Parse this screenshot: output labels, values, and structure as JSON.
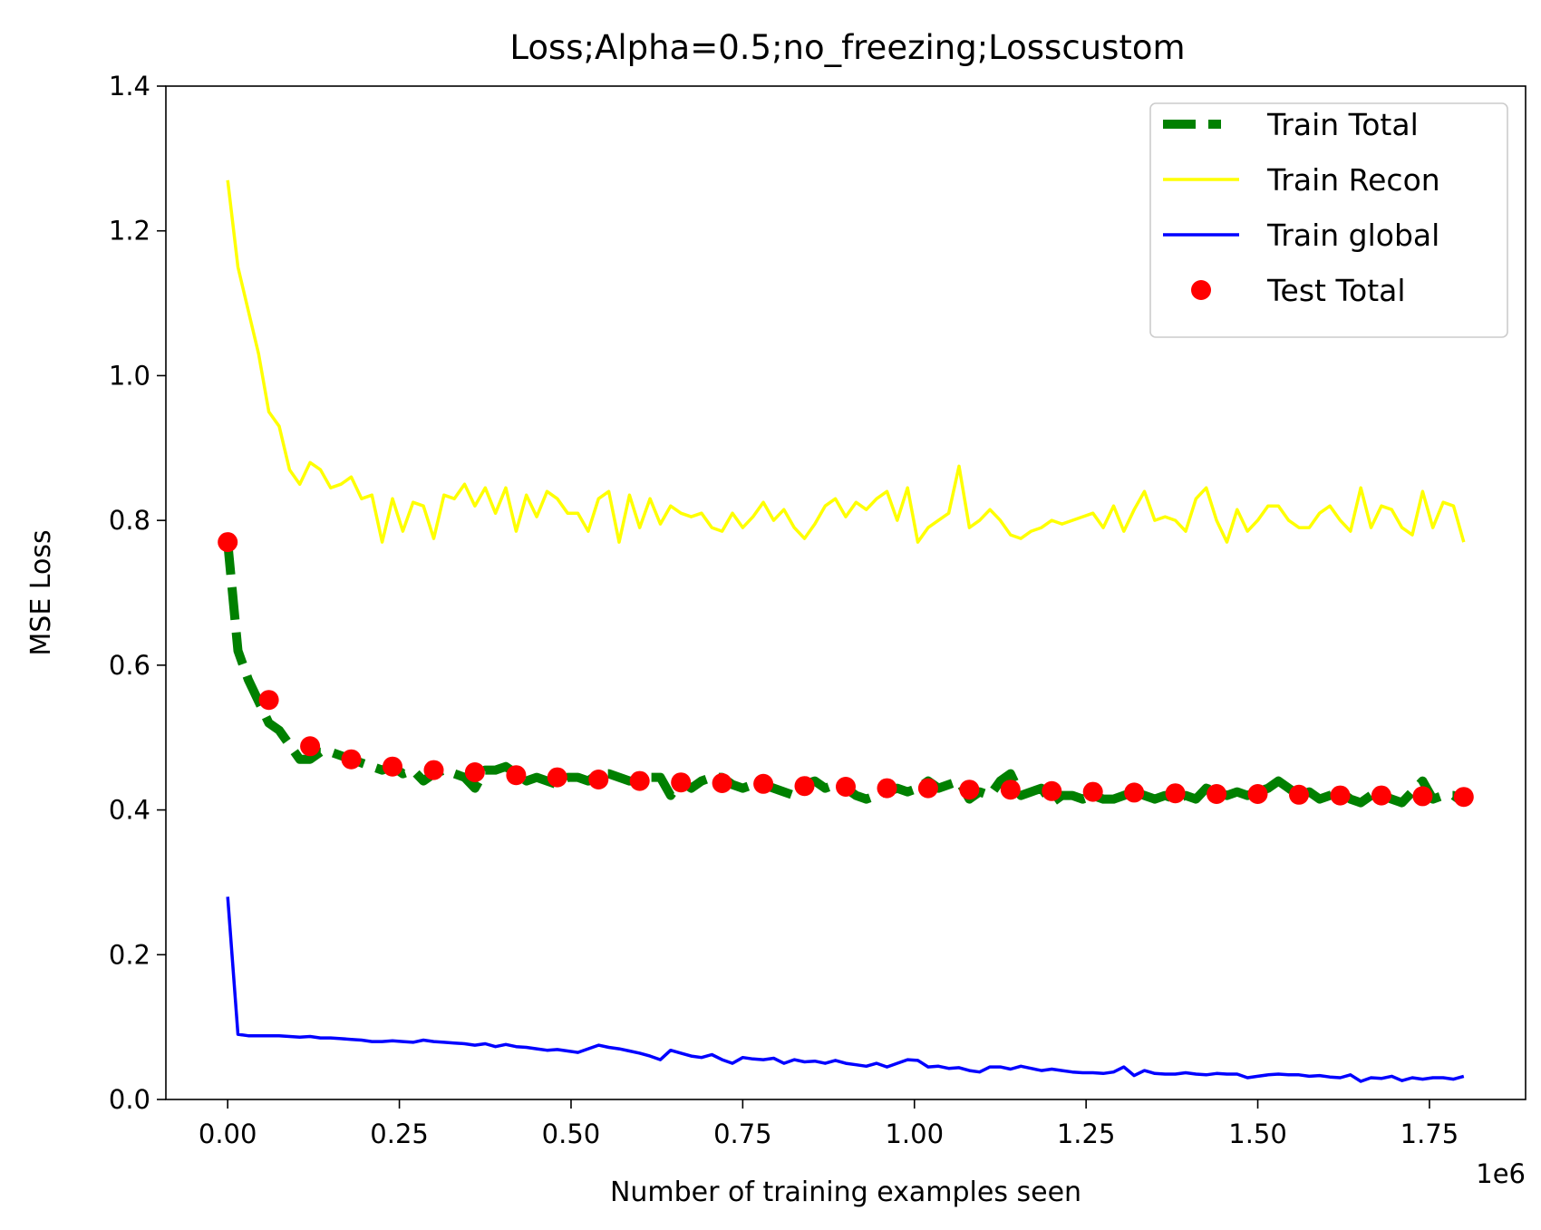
{
  "chart_data": {
    "type": "line",
    "title": "Loss;Alpha=0.5;no_freezing;Losscustom",
    "xlabel": "Number of training examples seen",
    "ylabel": "MSE Loss",
    "x_offset_label": "1e6",
    "xlim": [
      -0.09,
      1.89
    ],
    "ylim": [
      0.0,
      1.4
    ],
    "x_ticks": [
      0.0,
      0.25,
      0.5,
      0.75,
      1.0,
      1.25,
      1.5,
      1.75
    ],
    "x_tick_labels": [
      "0.00",
      "0.25",
      "0.50",
      "0.75",
      "1.00",
      "1.25",
      "1.50",
      "1.75"
    ],
    "y_ticks": [
      0.0,
      0.2,
      0.4,
      0.6,
      0.8,
      1.0,
      1.2,
      1.4
    ],
    "y_tick_labels": [
      "0.0",
      "0.2",
      "0.4",
      "0.6",
      "0.8",
      "1.0",
      "1.2",
      "1.4"
    ],
    "grid": false,
    "legend_position": "top-right",
    "series": [
      {
        "name": "Train Total",
        "style": "dashed",
        "color": "#008000",
        "x": [
          0.0,
          0.015,
          0.03,
          0.045,
          0.06,
          0.075,
          0.09,
          0.105,
          0.12,
          0.135,
          0.15,
          0.165,
          0.18,
          0.195,
          0.21,
          0.225,
          0.24,
          0.255,
          0.27,
          0.285,
          0.3,
          0.315,
          0.33,
          0.345,
          0.36,
          0.375,
          0.39,
          0.405,
          0.42,
          0.435,
          0.45,
          0.465,
          0.48,
          0.495,
          0.51,
          0.525,
          0.54,
          0.555,
          0.57,
          0.585,
          0.6,
          0.615,
          0.63,
          0.645,
          0.66,
          0.675,
          0.69,
          0.705,
          0.72,
          0.735,
          0.75,
          0.765,
          0.78,
          0.795,
          0.81,
          0.825,
          0.84,
          0.855,
          0.87,
          0.885,
          0.9,
          0.915,
          0.93,
          0.945,
          0.96,
          0.975,
          0.99,
          1.005,
          1.02,
          1.035,
          1.05,
          1.065,
          1.08,
          1.095,
          1.11,
          1.125,
          1.14,
          1.155,
          1.17,
          1.185,
          1.2,
          1.215,
          1.23,
          1.245,
          1.26,
          1.275,
          1.29,
          1.305,
          1.32,
          1.335,
          1.35,
          1.365,
          1.38,
          1.395,
          1.41,
          1.425,
          1.44,
          1.455,
          1.47,
          1.485,
          1.5,
          1.515,
          1.53,
          1.545,
          1.56,
          1.575,
          1.59,
          1.605,
          1.62,
          1.635,
          1.65,
          1.665,
          1.68,
          1.695,
          1.71,
          1.725,
          1.74,
          1.755,
          1.77,
          1.785,
          1.8
        ],
        "values": [
          0.77,
          0.62,
          0.58,
          0.55,
          0.52,
          0.51,
          0.49,
          0.47,
          0.47,
          0.48,
          0.48,
          0.475,
          0.47,
          0.465,
          0.46,
          0.455,
          0.46,
          0.45,
          0.455,
          0.44,
          0.45,
          0.455,
          0.45,
          0.445,
          0.43,
          0.455,
          0.455,
          0.46,
          0.45,
          0.44,
          0.445,
          0.44,
          0.435,
          0.445,
          0.445,
          0.44,
          0.45,
          0.45,
          0.445,
          0.44,
          0.44,
          0.445,
          0.445,
          0.42,
          0.44,
          0.43,
          0.44,
          0.445,
          0.445,
          0.435,
          0.43,
          0.435,
          0.435,
          0.43,
          0.425,
          0.42,
          0.435,
          0.44,
          0.43,
          0.435,
          0.43,
          0.42,
          0.415,
          0.42,
          0.425,
          0.43,
          0.425,
          0.43,
          0.44,
          0.43,
          0.435,
          0.44,
          0.415,
          0.425,
          0.42,
          0.44,
          0.45,
          0.42,
          0.425,
          0.43,
          0.41,
          0.42,
          0.42,
          0.415,
          0.42,
          0.415,
          0.415,
          0.42,
          0.425,
          0.42,
          0.415,
          0.42,
          0.415,
          0.42,
          0.415,
          0.43,
          0.425,
          0.42,
          0.425,
          0.42,
          0.425,
          0.43,
          0.44,
          0.43,
          0.42,
          0.425,
          0.415,
          0.42,
          0.425,
          0.415,
          0.41,
          0.42,
          0.42,
          0.415,
          0.41,
          0.425,
          0.44,
          0.415,
          0.42,
          0.42,
          0.41
        ]
      },
      {
        "name": "Train Recon",
        "style": "solid",
        "color": "#ffff00",
        "x": [
          0.0,
          0.015,
          0.03,
          0.045,
          0.06,
          0.075,
          0.09,
          0.105,
          0.12,
          0.135,
          0.15,
          0.165,
          0.18,
          0.195,
          0.21,
          0.225,
          0.24,
          0.255,
          0.27,
          0.285,
          0.3,
          0.315,
          0.33,
          0.345,
          0.36,
          0.375,
          0.39,
          0.405,
          0.42,
          0.435,
          0.45,
          0.465,
          0.48,
          0.495,
          0.51,
          0.525,
          0.54,
          0.555,
          0.57,
          0.585,
          0.6,
          0.615,
          0.63,
          0.645,
          0.66,
          0.675,
          0.69,
          0.705,
          0.72,
          0.735,
          0.75,
          0.765,
          0.78,
          0.795,
          0.81,
          0.825,
          0.84,
          0.855,
          0.87,
          0.885,
          0.9,
          0.915,
          0.93,
          0.945,
          0.96,
          0.975,
          0.99,
          1.005,
          1.02,
          1.035,
          1.05,
          1.065,
          1.08,
          1.095,
          1.11,
          1.125,
          1.14,
          1.155,
          1.17,
          1.185,
          1.2,
          1.215,
          1.23,
          1.245,
          1.26,
          1.275,
          1.29,
          1.305,
          1.32,
          1.335,
          1.35,
          1.365,
          1.38,
          1.395,
          1.41,
          1.425,
          1.44,
          1.455,
          1.47,
          1.485,
          1.5,
          1.515,
          1.53,
          1.545,
          1.56,
          1.575,
          1.59,
          1.605,
          1.62,
          1.635,
          1.65,
          1.665,
          1.68,
          1.695,
          1.71,
          1.725,
          1.74,
          1.755,
          1.77,
          1.785,
          1.8
        ],
        "values": [
          1.27,
          1.15,
          1.09,
          1.03,
          0.95,
          0.93,
          0.87,
          0.85,
          0.88,
          0.87,
          0.845,
          0.85,
          0.86,
          0.83,
          0.835,
          0.77,
          0.83,
          0.785,
          0.825,
          0.82,
          0.775,
          0.835,
          0.83,
          0.85,
          0.82,
          0.845,
          0.81,
          0.845,
          0.785,
          0.835,
          0.805,
          0.84,
          0.83,
          0.81,
          0.81,
          0.785,
          0.83,
          0.84,
          0.77,
          0.835,
          0.79,
          0.83,
          0.795,
          0.82,
          0.81,
          0.805,
          0.81,
          0.79,
          0.785,
          0.81,
          0.79,
          0.805,
          0.825,
          0.8,
          0.815,
          0.79,
          0.775,
          0.795,
          0.82,
          0.83,
          0.805,
          0.825,
          0.815,
          0.83,
          0.84,
          0.8,
          0.845,
          0.77,
          0.79,
          0.8,
          0.81,
          0.875,
          0.79,
          0.8,
          0.815,
          0.8,
          0.78,
          0.775,
          0.785,
          0.79,
          0.8,
          0.795,
          0.8,
          0.805,
          0.81,
          0.79,
          0.82,
          0.785,
          0.815,
          0.84,
          0.8,
          0.805,
          0.8,
          0.785,
          0.83,
          0.845,
          0.8,
          0.77,
          0.815,
          0.785,
          0.8,
          0.82,
          0.82,
          0.8,
          0.79,
          0.79,
          0.81,
          0.82,
          0.8,
          0.785,
          0.845,
          0.79,
          0.82,
          0.815,
          0.79,
          0.78,
          0.84,
          0.79,
          0.825,
          0.82,
          0.77
        ]
      },
      {
        "name": "Train global",
        "style": "solid",
        "color": "#0000ff",
        "x": [
          0.0,
          0.015,
          0.03,
          0.045,
          0.06,
          0.075,
          0.09,
          0.105,
          0.12,
          0.135,
          0.15,
          0.165,
          0.18,
          0.195,
          0.21,
          0.225,
          0.24,
          0.255,
          0.27,
          0.285,
          0.3,
          0.315,
          0.33,
          0.345,
          0.36,
          0.375,
          0.39,
          0.405,
          0.42,
          0.435,
          0.45,
          0.465,
          0.48,
          0.495,
          0.51,
          0.525,
          0.54,
          0.555,
          0.57,
          0.585,
          0.6,
          0.615,
          0.63,
          0.645,
          0.66,
          0.675,
          0.69,
          0.705,
          0.72,
          0.735,
          0.75,
          0.765,
          0.78,
          0.795,
          0.81,
          0.825,
          0.84,
          0.855,
          0.87,
          0.885,
          0.9,
          0.915,
          0.93,
          0.945,
          0.96,
          0.975,
          0.99,
          1.005,
          1.02,
          1.035,
          1.05,
          1.065,
          1.08,
          1.095,
          1.11,
          1.125,
          1.14,
          1.155,
          1.17,
          1.185,
          1.2,
          1.215,
          1.23,
          1.245,
          1.26,
          1.275,
          1.29,
          1.305,
          1.32,
          1.335,
          1.35,
          1.365,
          1.38,
          1.395,
          1.41,
          1.425,
          1.44,
          1.455,
          1.47,
          1.485,
          1.5,
          1.515,
          1.53,
          1.545,
          1.56,
          1.575,
          1.59,
          1.605,
          1.62,
          1.635,
          1.65,
          1.665,
          1.68,
          1.695,
          1.71,
          1.725,
          1.74,
          1.755,
          1.77,
          1.785,
          1.8
        ],
        "values": [
          0.28,
          0.09,
          0.088,
          0.088,
          0.088,
          0.088,
          0.087,
          0.086,
          0.087,
          0.085,
          0.085,
          0.084,
          0.083,
          0.082,
          0.08,
          0.08,
          0.081,
          0.08,
          0.079,
          0.082,
          0.08,
          0.079,
          0.078,
          0.077,
          0.075,
          0.077,
          0.073,
          0.076,
          0.073,
          0.072,
          0.07,
          0.068,
          0.069,
          0.067,
          0.065,
          0.07,
          0.075,
          0.072,
          0.07,
          0.067,
          0.064,
          0.06,
          0.055,
          0.068,
          0.064,
          0.06,
          0.058,
          0.062,
          0.055,
          0.05,
          0.058,
          0.056,
          0.055,
          0.057,
          0.05,
          0.055,
          0.052,
          0.053,
          0.05,
          0.054,
          0.05,
          0.048,
          0.046,
          0.05,
          0.045,
          0.05,
          0.055,
          0.054,
          0.045,
          0.046,
          0.043,
          0.044,
          0.04,
          0.038,
          0.045,
          0.045,
          0.042,
          0.046,
          0.043,
          0.04,
          0.042,
          0.04,
          0.038,
          0.037,
          0.037,
          0.036,
          0.038,
          0.045,
          0.033,
          0.04,
          0.036,
          0.035,
          0.035,
          0.037,
          0.035,
          0.034,
          0.036,
          0.035,
          0.035,
          0.03,
          0.032,
          0.034,
          0.035,
          0.034,
          0.034,
          0.032,
          0.033,
          0.031,
          0.03,
          0.034,
          0.025,
          0.03,
          0.029,
          0.032,
          0.026,
          0.03,
          0.028,
          0.03,
          0.03,
          0.028,
          0.032
        ]
      },
      {
        "name": "Test Total",
        "style": "scatter",
        "color": "#ff0000",
        "x": [
          0.0,
          0.06,
          0.12,
          0.18,
          0.24,
          0.3,
          0.36,
          0.42,
          0.48,
          0.54,
          0.6,
          0.66,
          0.72,
          0.78,
          0.84,
          0.9,
          0.96,
          1.02,
          1.08,
          1.14,
          1.2,
          1.26,
          1.32,
          1.38,
          1.44,
          1.5,
          1.56,
          1.62,
          1.68,
          1.74,
          1.8
        ],
        "values": [
          0.77,
          0.552,
          0.488,
          0.47,
          0.46,
          0.455,
          0.452,
          0.448,
          0.445,
          0.442,
          0.44,
          0.438,
          0.437,
          0.436,
          0.433,
          0.432,
          0.43,
          0.43,
          0.428,
          0.428,
          0.426,
          0.425,
          0.424,
          0.423,
          0.422,
          0.422,
          0.421,
          0.42,
          0.42,
          0.419,
          0.418
        ]
      }
    ]
  }
}
